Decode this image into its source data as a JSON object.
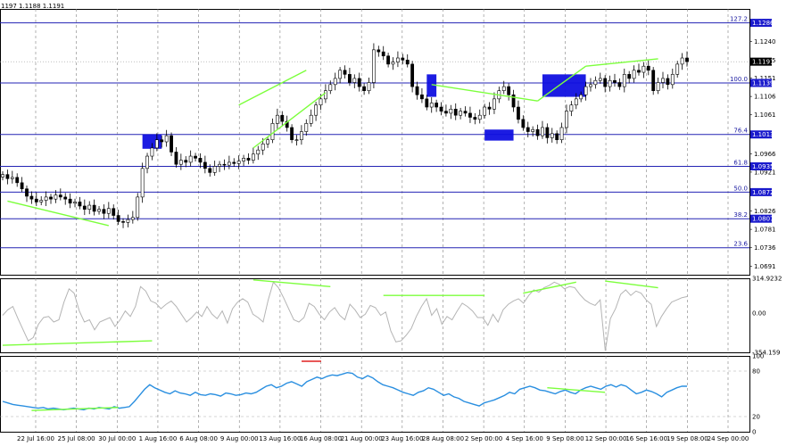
{
  "header": {
    "ohlc": "1197 1.1188 1.1191"
  },
  "price_axis": {
    "ticks": [
      "1.1240",
      "1.1195",
      "1.1151",
      "1.1106",
      "1.1061",
      "1.0966",
      "1.0921",
      "1.0826",
      "1.0781",
      "1.0736",
      "1.0691"
    ],
    "current_price": "1.1191"
  },
  "fib_levels": [
    {
      "label": "127.2",
      "value": "1.1286"
    },
    {
      "label": "100.0",
      "value": "1.1139"
    },
    {
      "label": "76.4",
      "value": "1.1013"
    },
    {
      "label": "61.8",
      "value": "1.0935"
    },
    {
      "label": "50.0",
      "value": "1.0872"
    },
    {
      "label": "38.2",
      "value": "1.0807"
    },
    {
      "label": "23.6",
      "value": ""
    }
  ],
  "cci_axis": {
    "ticks": [
      "314.9232",
      "0.00",
      "-354.159"
    ]
  },
  "rsi_axis": {
    "ticks": [
      "100",
      "80",
      "20",
      "0"
    ]
  },
  "time_axis": {
    "labels": [
      "22 Jul 16:00",
      "25 Jul 08:00",
      "30 Jul 00:00",
      "1 Aug 16:00",
      "6 Aug 08:00",
      "9 Aug 00:00",
      "13 Aug 16:00",
      "16 Aug 08:00",
      "21 Aug 00:00",
      "23 Aug 16:00",
      "28 Aug 08:00",
      "2 Sep 00:00",
      "4 Sep 16:00",
      "9 Sep 08:00",
      "12 Sep 00:00",
      "16 Sep 16:00",
      "19 Sep 08:00",
      "24 Sep 00:00"
    ]
  },
  "colors": {
    "fib_line": "#2323b4",
    "tag_bg": "#1a1acc",
    "zone": "#1010e0",
    "trend": "#7cff3c",
    "candle": "#000000",
    "cci_line": "#b4b4b4",
    "rsi_line": "#2a8fe0",
    "grid": "#808080"
  },
  "chart_data": [
    {
      "type": "candlestick",
      "instrument": "",
      "close_series": [
        1.0915,
        1.0905,
        1.0908,
        1.0895,
        1.088,
        1.0862,
        1.0855,
        1.0848,
        1.0852,
        1.086,
        1.0855,
        1.0865,
        1.086,
        1.0855,
        1.0845,
        1.0848,
        1.0838,
        1.083,
        1.084,
        1.0825,
        1.083,
        1.082,
        1.0832,
        1.0815,
        1.08,
        1.0798,
        1.0805,
        1.081,
        1.086,
        1.093,
        1.096,
        1.098,
        1.1,
        1.0995,
        1.101,
        1.097,
        1.094,
        1.095,
        1.0945,
        1.096,
        1.0955,
        1.0945,
        1.093,
        1.092,
        1.0935,
        1.094,
        1.0938,
        1.0945,
        1.0942,
        1.0948,
        1.0955,
        1.095,
        1.0965,
        1.0975,
        1.099,
        1.1,
        1.104,
        1.106,
        1.1045,
        1.103,
        1.1,
        1.1,
        1.102,
        1.104,
        1.106,
        1.1085,
        1.11,
        1.112,
        1.1135,
        1.115,
        1.117,
        1.116,
        1.114,
        1.115,
        1.113,
        1.112,
        1.114,
        1.122,
        1.1215,
        1.1205,
        1.1185,
        1.119,
        1.12,
        1.1195,
        1.1185,
        1.113,
        1.111,
        1.11,
        1.108,
        1.109,
        1.108,
        1.107,
        1.1065,
        1.1075,
        1.106,
        1.107,
        1.1065,
        1.1055,
        1.105,
        1.106,
        1.108,
        1.1075,
        1.11,
        1.112,
        1.113,
        1.111,
        1.108,
        1.105,
        1.103,
        1.102,
        1.1025,
        1.101,
        1.103,
        1.1005,
        1.1015,
        1.1,
        1.103,
        1.107,
        1.1085,
        1.11,
        1.111,
        1.113,
        1.1135,
        1.1145,
        1.115,
        1.113,
        1.1145,
        1.114,
        1.113,
        1.116,
        1.115,
        1.117,
        1.1165,
        1.118,
        1.117,
        1.112,
        1.114,
        1.115,
        1.1135,
        1.116,
        1.1185,
        1.12,
        1.1191
      ],
      "fibonacci": {
        "127.2": 1.1286,
        "100.0": 1.1139,
        "76.4": 1.1013,
        "61.8": 1.0935,
        "50.0": 1.0872,
        "38.2": 1.0807,
        "23.6": 1.0736
      },
      "ylim": [
        1.067,
        1.132
      ],
      "zones": [
        {
          "from_index": 29,
          "to_index": 33,
          "low": 1.0978,
          "high": 1.1013
        },
        {
          "from_index": 88,
          "to_index": 90,
          "low": 1.1105,
          "high": 1.116
        },
        {
          "from_index": 100,
          "to_index": 106,
          "low": 1.0998,
          "high": 1.1025
        },
        {
          "from_index": 112,
          "to_index": 121,
          "low": 1.1105,
          "high": 1.116
        }
      ],
      "trendlines": [
        {
          "i1": 1,
          "p1": 1.085,
          "i2": 22,
          "p2": 1.079
        },
        {
          "i1": 49,
          "p1": 1.1085,
          "i2": 63,
          "p2": 1.117
        },
        {
          "i1": 52,
          "p1": 1.098,
          "i2": 67,
          "p2": 1.1115
        },
        {
          "i1": 89,
          "p1": 1.1135,
          "i2": 111,
          "p2": 1.1095
        },
        {
          "i1": 111,
          "p1": 1.1095,
          "i2": 121,
          "p2": 1.118
        },
        {
          "i1": 121,
          "p1": 1.118,
          "i2": 136,
          "p2": 1.1198
        }
      ]
    },
    {
      "type": "line",
      "ylim": [
        -354.159,
        314.9232
      ],
      "values": [
        -20,
        30,
        60,
        -50,
        -150,
        -250,
        -220,
        -100,
        -40,
        -30,
        -80,
        -60,
        100,
        220,
        180,
        20,
        -80,
        -60,
        -150,
        -80,
        -60,
        -40,
        -120,
        -60,
        20,
        -30,
        60,
        240,
        200,
        110,
        90,
        40,
        80,
        110,
        60,
        -10,
        -80,
        -40,
        10,
        -30,
        60,
        -10,
        -50,
        20,
        -90,
        40,
        100,
        130,
        100,
        -10,
        -40,
        -80,
        120,
        280,
        230,
        140,
        40,
        -60,
        -80,
        -40,
        90,
        60,
        -10,
        -60,
        10,
        50,
        -20,
        -60,
        80,
        30,
        -40,
        -10,
        70,
        50,
        -20,
        10,
        -160,
        -260,
        -250,
        -200,
        -140,
        -30,
        60,
        130,
        -20,
        40,
        -100,
        -30,
        -60,
        20,
        90,
        60,
        20,
        -40,
        -40,
        -110,
        -10,
        -80,
        30,
        80,
        110,
        130,
        90,
        160,
        210,
        190,
        230,
        250,
        280,
        260,
        220,
        240,
        230,
        170,
        120,
        90,
        70,
        120,
        -340,
        -50,
        40,
        170,
        210,
        160,
        200,
        180,
        120,
        80,
        -120,
        -30,
        40,
        100,
        120,
        140,
        150
      ]
    },
    {
      "type": "line",
      "ylim": [
        0,
        100
      ],
      "values": [
        40,
        38,
        36,
        35,
        34,
        33,
        32,
        31,
        32,
        30,
        31,
        30,
        29,
        30,
        31,
        30,
        29,
        31,
        30,
        32,
        31,
        30,
        33,
        31,
        32,
        33,
        40,
        48,
        56,
        62,
        58,
        55,
        52,
        50,
        54,
        51,
        50,
        48,
        52,
        49,
        48,
        50,
        49,
        47,
        51,
        50,
        48,
        49,
        51,
        50,
        52,
        56,
        60,
        62,
        58,
        60,
        64,
        66,
        63,
        60,
        66,
        69,
        72,
        70,
        73,
        75,
        74,
        76,
        78,
        77,
        72,
        70,
        74,
        71,
        66,
        62,
        60,
        58,
        55,
        52,
        50,
        48,
        52,
        54,
        58,
        56,
        52,
        48,
        50,
        46,
        44,
        40,
        38,
        36,
        34,
        38,
        40,
        42,
        45,
        48,
        52,
        50,
        56,
        58,
        60,
        58,
        55,
        54,
        52,
        50,
        53,
        55,
        52,
        50,
        55,
        58,
        60,
        58,
        56,
        60,
        62,
        59,
        62,
        60,
        55,
        50,
        52,
        55,
        53,
        50,
        46,
        52,
        55,
        58,
        60,
        60
      ]
    }
  ]
}
